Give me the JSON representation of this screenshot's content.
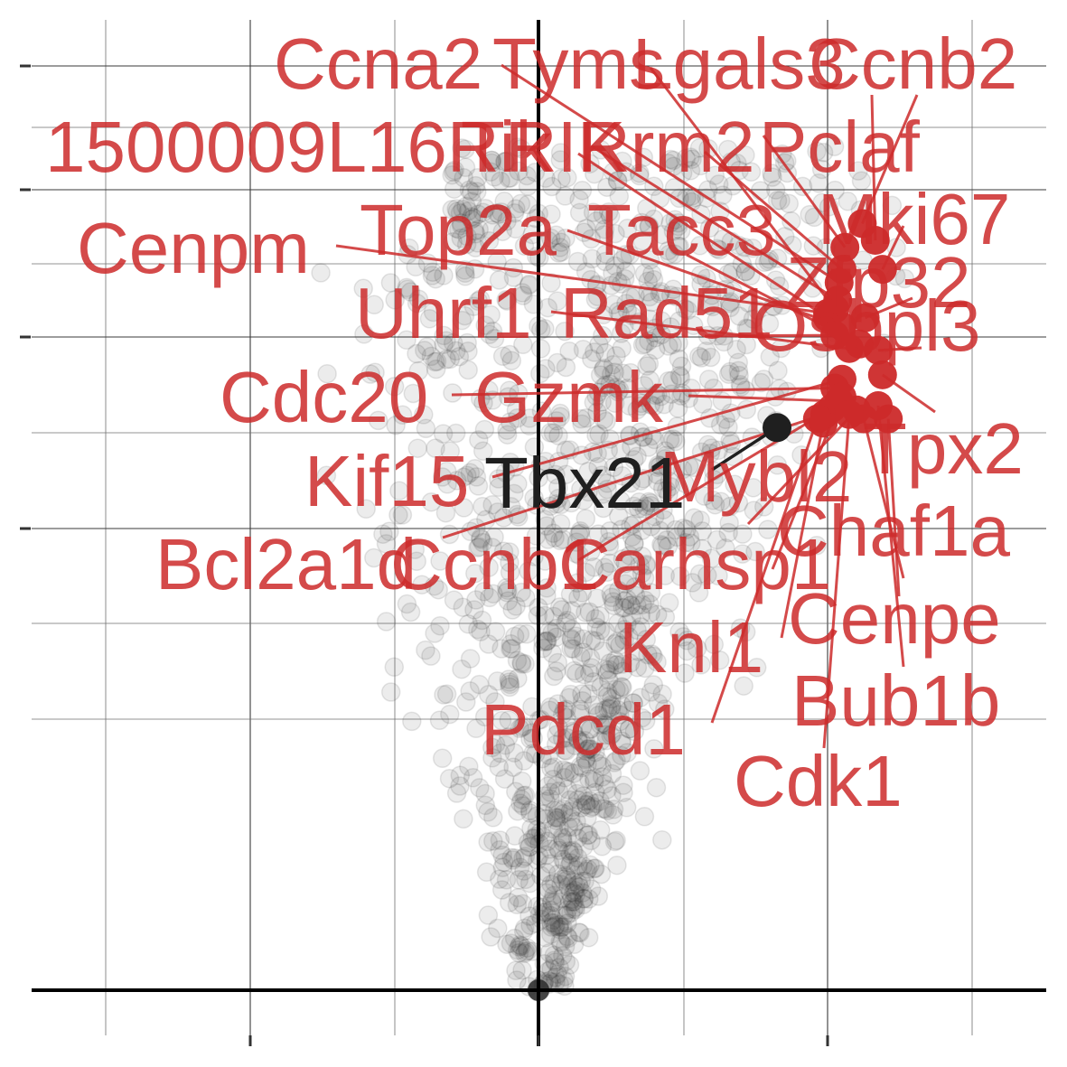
{
  "colors": {
    "highlight": "#cc2a2a",
    "background_points": "#303030",
    "reference_gene": "#1f1f1f",
    "axis": "#000000",
    "grid": "#3a3a3a"
  },
  "chart_data": {
    "type": "scatter",
    "title": "",
    "xlabel": "",
    "ylabel": "",
    "x_tick_labels": [],
    "y_tick_labels": [],
    "grid": true,
    "legend": "none",
    "xlim": [
      -3.5,
      3.5
    ],
    "ylim": [
      0,
      10.5
    ],
    "highlighted_genes": [
      {
        "label": "Ccna2",
        "x": 2.08,
        "y": 8.05
      },
      {
        "label": "Tyms",
        "x": 2.05,
        "y": 7.75
      },
      {
        "label": "Lgals3",
        "x": 2.12,
        "y": 8.45
      },
      {
        "label": "Ccnb2",
        "x": 2.33,
        "y": 8.53
      },
      {
        "label": "1500009L16Rik",
        "x": 2.0,
        "y": 7.65
      },
      {
        "label": "TRIK",
        "x": 2.07,
        "y": 7.85
      },
      {
        "label": "Rrm2",
        "x": 2.1,
        "y": 8.2
      },
      {
        "label": "Pclaf",
        "x": 2.24,
        "y": 8.72
      },
      {
        "label": "Mki67",
        "x": 2.38,
        "y": 8.2
      },
      {
        "label": "Top2a",
        "x": 2.1,
        "y": 7.55
      },
      {
        "label": "Tacc3",
        "x": 2.22,
        "y": 7.35
      },
      {
        "label": "Zfp32",
        "x": 2.26,
        "y": 7.65
      },
      {
        "label": "Cenpm",
        "x": 2.0,
        "y": 7.7
      },
      {
        "label": "Uhrf1",
        "x": 2.15,
        "y": 7.3
      },
      {
        "label": "Rad51",
        "x": 2.05,
        "y": 7.45
      },
      {
        "label": "Osbpl3",
        "x": 2.35,
        "y": 7.28
      },
      {
        "label": "Cdc20",
        "x": 2.05,
        "y": 6.85
      },
      {
        "label": "Gzmk",
        "x": 2.08,
        "y": 6.7
      },
      {
        "label": "Tpx2",
        "x": 2.38,
        "y": 7.0
      },
      {
        "label": "Kif15",
        "x": 2.1,
        "y": 6.95
      },
      {
        "label": "Mybl2",
        "x": 2.2,
        "y": 6.6
      },
      {
        "label": "Chaf1a",
        "x": 2.25,
        "y": 6.5
      },
      {
        "label": "Bcl2a1d",
        "x": 1.98,
        "y": 6.55
      },
      {
        "label": "Ccnb1",
        "x": 2.03,
        "y": 6.62
      },
      {
        "label": "Carhsp1",
        "x": 2.1,
        "y": 6.75
      },
      {
        "label": "Cenpe",
        "x": 2.42,
        "y": 6.5
      },
      {
        "label": "Knl1",
        "x": 1.97,
        "y": 6.45
      },
      {
        "label": "Bub1b",
        "x": 2.35,
        "y": 6.65
      },
      {
        "label": "Pdcd1",
        "x": 1.93,
        "y": 6.5
      },
      {
        "label": "Cdk1",
        "x": 2.15,
        "y": 6.55
      }
    ],
    "reference_gene": {
      "label": "Tbx21",
      "x": 1.65,
      "y": 6.4
    }
  }
}
